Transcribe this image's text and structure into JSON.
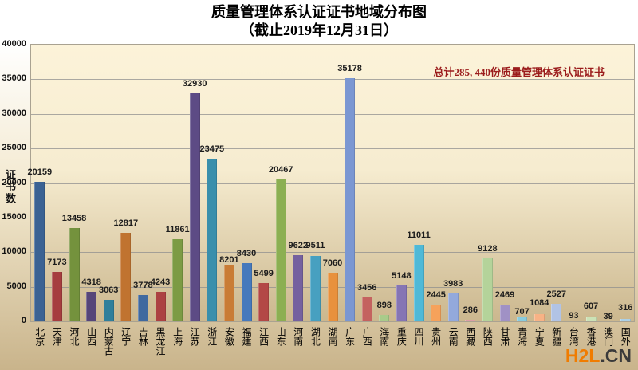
{
  "title": {
    "line1": "质量管理体系认证证书地域分布图",
    "line2": "（截止2019年12月31日）"
  },
  "annotation": {
    "text": "总计285, 440份质量管理体系认证证书",
    "color": "#9b1c1c"
  },
  "watermark": {
    "part1": "H2L",
    "part2": ".CN",
    "color1": "#f07c00",
    "color2": "#3a3a3a"
  },
  "chart_data": {
    "type": "bar",
    "title": "质量管理体系认证证书地域分布图（截止2019年12月31日）",
    "xlabel": "",
    "ylabel": "证书数",
    "ylim": [
      0,
      40000
    ],
    "ytick_step": 5000,
    "grid": true,
    "legend": false,
    "total_annotation": "总计285, 440份质量管理体系认证证书",
    "categories": [
      "北京",
      "天津",
      "河北",
      "山西",
      "内蒙古",
      "辽宁",
      "吉林",
      "黑龙江",
      "上海",
      "江苏",
      "浙江",
      "安徽",
      "福建",
      "江西",
      "山东",
      "河南",
      "湖北",
      "湖南",
      "广东",
      "广西",
      "海南",
      "重庆",
      "四川",
      "贵州",
      "云南",
      "西藏",
      "陕西",
      "甘肃",
      "青海",
      "宁夏",
      "新疆",
      "台湾",
      "香港",
      "澳门",
      "国外"
    ],
    "values": [
      20159,
      7173,
      13458,
      4318,
      3063,
      12817,
      3778,
      4243,
      11861,
      32930,
      23475,
      8201,
      8430,
      5499,
      20467,
      9622,
      9511,
      7060,
      35178,
      3456,
      898,
      5148,
      11011,
      2445,
      3983,
      286,
      9128,
      2469,
      707,
      1084,
      2527,
      93,
      607,
      39,
      316
    ],
    "bar_colors": [
      "#3b6293",
      "#a63d3f",
      "#74923d",
      "#564579",
      "#2f7f9b",
      "#c07330",
      "#40699f",
      "#ac4142",
      "#7c9b44",
      "#5d4b85",
      "#3a8fac",
      "#c97c35",
      "#4679bc",
      "#b34846",
      "#8caf52",
      "#75619f",
      "#47a0c0",
      "#e8913d",
      "#7b97d2",
      "#c4625f",
      "#a9cb8a",
      "#8575b4",
      "#4fb9d7",
      "#f6a25b",
      "#93a9dc",
      "#dd9fa5",
      "#b4d39a",
      "#a091c5",
      "#88cbde",
      "#f8b285",
      "#b1c3e5",
      "#e9c8cc",
      "#cbe2b6",
      "#c9bfde",
      "#abd0e8"
    ],
    "label_dy": {
      "11": 6,
      "28": 6,
      "29": -2,
      "31": 6,
      "32": -2,
      "33": 6,
      "34": -2
    }
  }
}
